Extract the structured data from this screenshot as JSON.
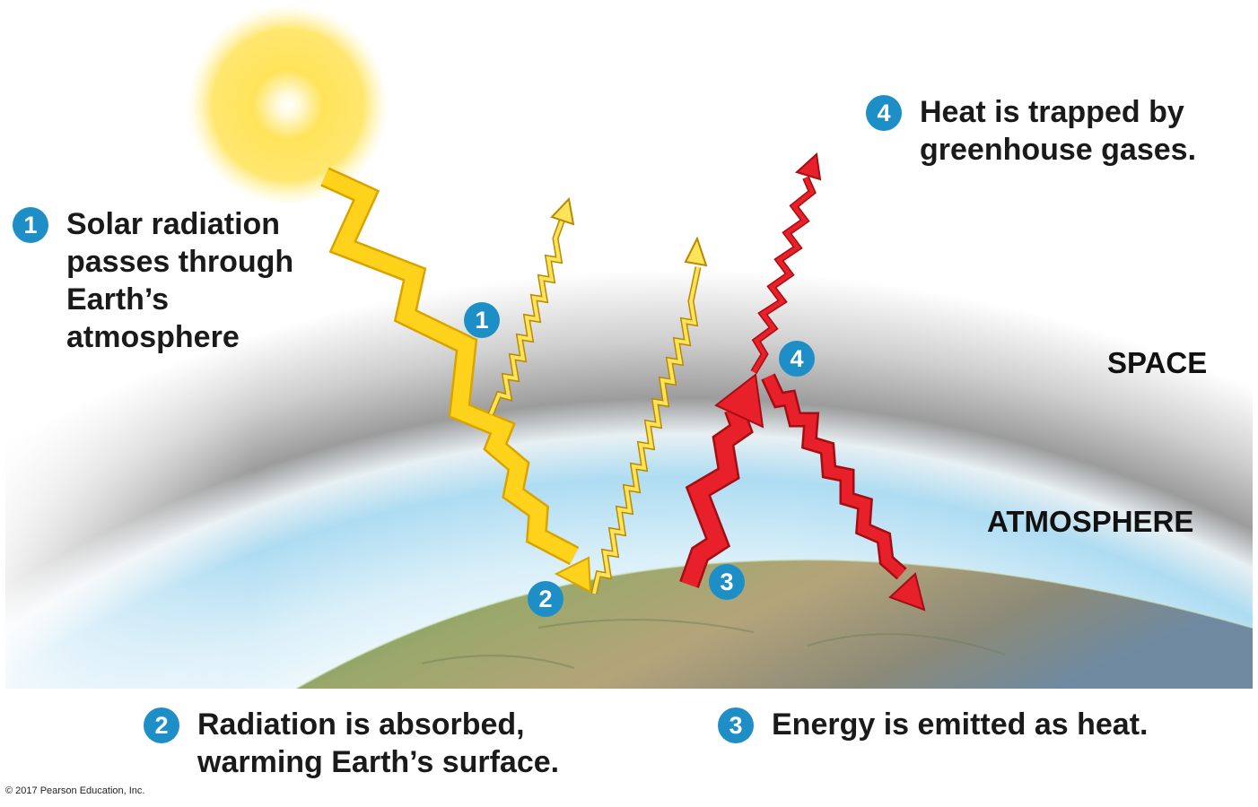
{
  "steps": [
    {
      "number": "1",
      "lines": [
        "Solar radiation",
        "passes through",
        "Earth’s",
        "atmosphere"
      ]
    },
    {
      "number": "2",
      "lines": [
        "Radiation is absorbed,",
        "warming Earth’s surface."
      ]
    },
    {
      "number": "3",
      "lines": [
        "Energy is emitted as heat."
      ]
    },
    {
      "number": "4",
      "lines": [
        "Heat is trapped by",
        "greenhouse gases."
      ]
    }
  ],
  "regions": {
    "space": "SPACE",
    "atmosphere": "ATMOSPHERE"
  },
  "markers": [
    "1",
    "2",
    "3",
    "4"
  ],
  "copyright": "© 2017 Pearson Education, Inc.",
  "colors": {
    "solar": "#ffd21c",
    "heat": "#e8202a",
    "badge": "#1e8fc6",
    "sky": "#bfe6f7",
    "space": "#9a9a9a"
  }
}
